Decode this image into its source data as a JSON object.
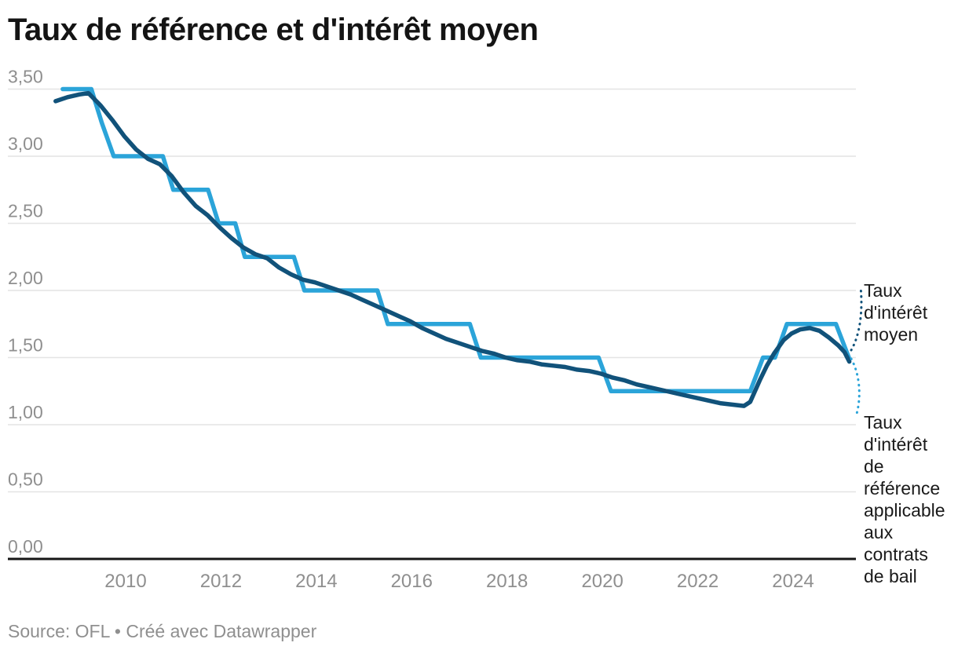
{
  "header": {
    "title": "Taux de référence et d'intérêt moyen"
  },
  "footer": {
    "source": "Source: OFL • Créé avec Datawrapper"
  },
  "annotations": {
    "moyen": {
      "text": "Taux\nd'intérêt\nmoyen"
    },
    "reference": {
      "text": "Taux\nd'intérêt\nde\nréférence\napplicable\naux\ncontrats\nde bail"
    }
  },
  "chart_data": {
    "type": "line",
    "title": "Taux de référence et d'intérêt moyen",
    "xlabel": "",
    "ylabel": "",
    "grid": "horizontal",
    "legend_position": "right-edge-annotations",
    "colors": {
      "grid": "#e4e4e4",
      "baseline": "#161616",
      "tick_label": "#8f8f8f"
    },
    "x_axis": {
      "range": [
        2008.4,
        2025.45
      ],
      "ticks": [
        {
          "value": 2010,
          "label": "2010"
        },
        {
          "value": 2012,
          "label": "2012"
        },
        {
          "value": 2014,
          "label": "2014"
        },
        {
          "value": 2016,
          "label": "2016"
        },
        {
          "value": 2018,
          "label": "2018"
        },
        {
          "value": 2020,
          "label": "2020"
        },
        {
          "value": 2022,
          "label": "2022"
        },
        {
          "value": 2024,
          "label": "2024"
        }
      ]
    },
    "y_axis": {
      "range": [
        0,
        3.5
      ],
      "ticks": [
        {
          "value": 3.5,
          "label": "3,50"
        },
        {
          "value": 3.0,
          "label": "3,00"
        },
        {
          "value": 2.5,
          "label": "2,50"
        },
        {
          "value": 2.0,
          "label": "2,00"
        },
        {
          "value": 1.5,
          "label": "1,50"
        },
        {
          "value": 1.0,
          "label": "1,00"
        },
        {
          "value": 0.5,
          "label": "0,50"
        },
        {
          "value": 0.0,
          "label": "0,00"
        }
      ]
    },
    "series": [
      {
        "id": "taux-reference",
        "name": "Taux d'intérêt de référence applicable aux contrats de bail",
        "color": "#2ba4d9",
        "stroke_width": 5.5,
        "points": [
          [
            2008.68,
            3.5
          ],
          [
            2009.28,
            3.5
          ],
          [
            2009.5,
            3.25
          ],
          [
            2009.75,
            3.0
          ],
          [
            2010.78,
            3.0
          ],
          [
            2011.0,
            2.75
          ],
          [
            2011.73,
            2.75
          ],
          [
            2011.95,
            2.5
          ],
          [
            2012.3,
            2.5
          ],
          [
            2012.5,
            2.25
          ],
          [
            2013.53,
            2.25
          ],
          [
            2013.75,
            2.0
          ],
          [
            2015.28,
            2.0
          ],
          [
            2015.5,
            1.75
          ],
          [
            2017.22,
            1.75
          ],
          [
            2017.45,
            1.5
          ],
          [
            2019.92,
            1.5
          ],
          [
            2020.18,
            1.25
          ],
          [
            2023.1,
            1.25
          ],
          [
            2023.37,
            1.5
          ],
          [
            2023.62,
            1.5
          ],
          [
            2023.87,
            1.75
          ],
          [
            2024.9,
            1.75
          ],
          [
            2025.17,
            1.5
          ]
        ]
      },
      {
        "id": "taux-moyen",
        "name": "Taux d'intérêt moyen",
        "color": "#11527a",
        "stroke_width": 5.5,
        "points": [
          [
            2008.53,
            3.41
          ],
          [
            2008.78,
            3.44
          ],
          [
            2009.03,
            3.46
          ],
          [
            2009.22,
            3.47
          ],
          [
            2009.47,
            3.38
          ],
          [
            2009.72,
            3.27
          ],
          [
            2009.97,
            3.15
          ],
          [
            2010.22,
            3.05
          ],
          [
            2010.47,
            2.98
          ],
          [
            2010.72,
            2.94
          ],
          [
            2010.97,
            2.85
          ],
          [
            2011.22,
            2.73
          ],
          [
            2011.47,
            2.63
          ],
          [
            2011.72,
            2.56
          ],
          [
            2011.97,
            2.47
          ],
          [
            2012.22,
            2.39
          ],
          [
            2012.47,
            2.32
          ],
          [
            2012.72,
            2.27
          ],
          [
            2012.97,
            2.24
          ],
          [
            2013.22,
            2.17
          ],
          [
            2013.47,
            2.12
          ],
          [
            2013.72,
            2.08
          ],
          [
            2013.97,
            2.06
          ],
          [
            2014.22,
            2.03
          ],
          [
            2014.47,
            2.0
          ],
          [
            2014.72,
            1.97
          ],
          [
            2014.97,
            1.93
          ],
          [
            2015.22,
            1.89
          ],
          [
            2015.47,
            1.85
          ],
          [
            2015.72,
            1.81
          ],
          [
            2015.97,
            1.77
          ],
          [
            2016.22,
            1.72
          ],
          [
            2016.47,
            1.68
          ],
          [
            2016.72,
            1.64
          ],
          [
            2016.97,
            1.61
          ],
          [
            2017.22,
            1.58
          ],
          [
            2017.47,
            1.55
          ],
          [
            2017.72,
            1.53
          ],
          [
            2017.97,
            1.5
          ],
          [
            2018.22,
            1.48
          ],
          [
            2018.47,
            1.47
          ],
          [
            2018.72,
            1.45
          ],
          [
            2018.97,
            1.44
          ],
          [
            2019.22,
            1.43
          ],
          [
            2019.47,
            1.41
          ],
          [
            2019.72,
            1.4
          ],
          [
            2019.97,
            1.38
          ],
          [
            2020.22,
            1.35
          ],
          [
            2020.47,
            1.33
          ],
          [
            2020.72,
            1.3
          ],
          [
            2020.97,
            1.28
          ],
          [
            2021.22,
            1.26
          ],
          [
            2021.47,
            1.24
          ],
          [
            2021.72,
            1.22
          ],
          [
            2021.97,
            1.2
          ],
          [
            2022.22,
            1.18
          ],
          [
            2022.47,
            1.16
          ],
          [
            2022.72,
            1.15
          ],
          [
            2022.97,
            1.14
          ],
          [
            2023.1,
            1.17
          ],
          [
            2023.3,
            1.33
          ],
          [
            2023.45,
            1.44
          ],
          [
            2023.6,
            1.53
          ],
          [
            2023.8,
            1.63
          ],
          [
            2023.97,
            1.68
          ],
          [
            2024.15,
            1.71
          ],
          [
            2024.35,
            1.72
          ],
          [
            2024.55,
            1.7
          ],
          [
            2024.75,
            1.65
          ],
          [
            2024.95,
            1.59
          ],
          [
            2025.08,
            1.54
          ],
          [
            2025.18,
            1.47
          ]
        ]
      }
    ]
  }
}
